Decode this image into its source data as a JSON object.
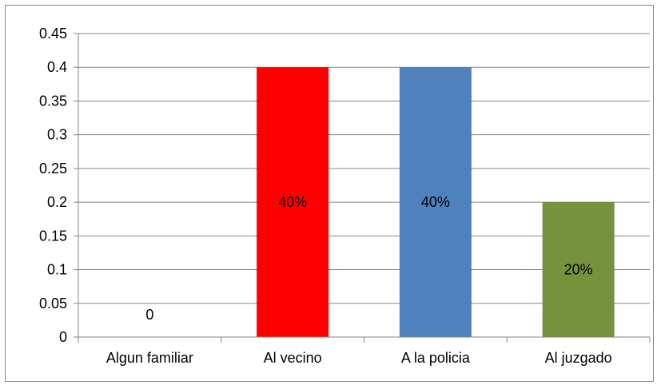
{
  "chart_data": {
    "type": "bar",
    "title": "",
    "xlabel": "",
    "ylabel": "",
    "categories": [
      "Algun familiar",
      "Al vecino",
      "A la policia",
      "Al juzgado"
    ],
    "values": [
      0,
      0.4,
      0.4,
      0.2
    ],
    "data_labels": [
      "0",
      "40%",
      "40%",
      "20%"
    ],
    "bar_colors": [
      "#ffffff",
      "#ff0000",
      "#4f81bd",
      "#76923c"
    ],
    "ylim": [
      0,
      0.45
    ],
    "yticks": [
      "0",
      "0.05",
      "0.1",
      "0.15",
      "0.2",
      "0.25",
      "0.3",
      "0.35",
      "0.4",
      "0.45"
    ],
    "grid": true,
    "legend": "none"
  }
}
